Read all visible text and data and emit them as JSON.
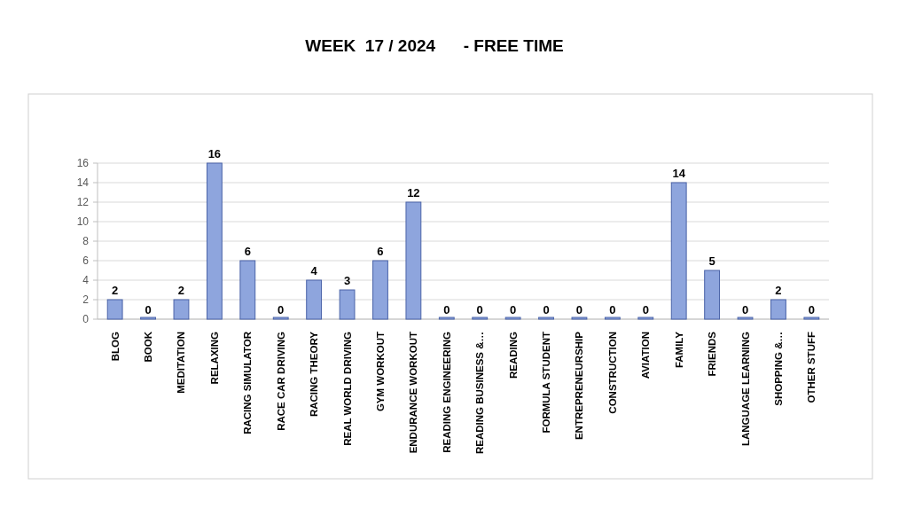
{
  "chart_data": {
    "type": "bar",
    "title": "WEEK  17 / 2024      - FREE TIME",
    "categories": [
      "BLOG",
      "BOOK",
      "MEDITATION",
      "RELAXING",
      "RACING SIMULATOR",
      "RACE CAR DRIVING",
      "RACING THEORY",
      "REAL WORLD DRIVING",
      "GYM WORKOUT",
      "ENDURANCE WORKOUT",
      "READING ENGINEERING",
      "READING BUSINESS &…",
      "READING",
      "FORMULA STUDENT",
      "ENTREPRENEURSHIP",
      "CONSTRUCTION",
      "AVIATION",
      "FAMILY",
      "FRIENDS",
      "LANGUAGE LEARNING",
      "SHOPPING &…",
      "OTHER STUFF"
    ],
    "values": [
      2,
      0,
      2,
      16,
      6,
      0,
      4,
      3,
      6,
      12,
      0,
      0,
      0,
      0,
      0,
      0,
      0,
      14,
      5,
      0,
      2,
      0
    ],
    "color": "#8ea5dd",
    "ylim": [
      0,
      16
    ],
    "yticks": [
      0,
      2,
      4,
      6,
      8,
      10,
      12,
      14,
      16
    ],
    "grid": "y",
    "data_labels": true
  }
}
